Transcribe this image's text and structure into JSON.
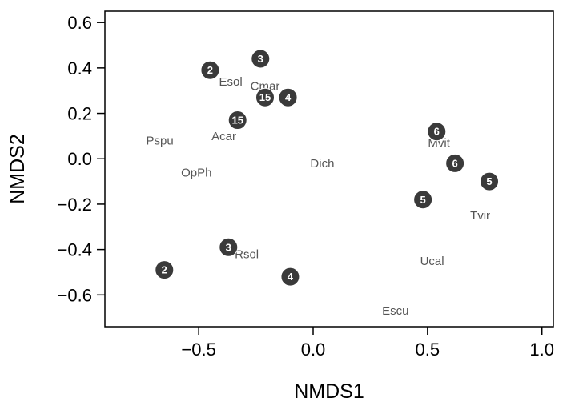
{
  "chart_data": {
    "type": "scatter",
    "xlabel": "NMDS1",
    "ylabel": "NMDS2",
    "xlim": [
      -0.91,
      1.05
    ],
    "ylim": [
      -0.74,
      0.65
    ],
    "x_ticks": [
      {
        "value": -0.5,
        "label": "−0.5"
      },
      {
        "value": 0.0,
        "label": "0.0"
      },
      {
        "value": 0.5,
        "label": "0.5"
      },
      {
        "value": 1.0,
        "label": "1.0"
      }
    ],
    "y_ticks": [
      {
        "value": -0.6,
        "label": "−0.6"
      },
      {
        "value": -0.4,
        "label": "−0.4"
      },
      {
        "value": -0.2,
        "label": "−0.2"
      },
      {
        "value": 0.0,
        "label": "0.0"
      },
      {
        "value": 0.2,
        "label": "0.2"
      },
      {
        "value": 0.4,
        "label": "0.4"
      },
      {
        "value": 0.6,
        "label": "0.6"
      }
    ],
    "sites": [
      {
        "label": "2",
        "x": -0.45,
        "y": 0.39
      },
      {
        "label": "3",
        "x": -0.23,
        "y": 0.44
      },
      {
        "label": "15",
        "x": -0.21,
        "y": 0.27
      },
      {
        "label": "4",
        "x": -0.11,
        "y": 0.27
      },
      {
        "label": "15",
        "x": -0.33,
        "y": 0.17
      },
      {
        "label": "6",
        "x": 0.54,
        "y": 0.12
      },
      {
        "label": "6",
        "x": 0.62,
        "y": -0.02
      },
      {
        "label": "5",
        "x": 0.77,
        "y": -0.1
      },
      {
        "label": "5",
        "x": 0.48,
        "y": -0.18
      },
      {
        "label": "3",
        "x": -0.37,
        "y": -0.39
      },
      {
        "label": "2",
        "x": -0.65,
        "y": -0.49
      },
      {
        "label": "4",
        "x": -0.1,
        "y": -0.52
      }
    ],
    "species": [
      {
        "label": "Esol",
        "x": -0.36,
        "y": 0.34
      },
      {
        "label": "Cmar",
        "x": -0.21,
        "y": 0.32
      },
      {
        "label": "Pspu",
        "x": -0.67,
        "y": 0.08
      },
      {
        "label": "Acar",
        "x": -0.39,
        "y": 0.1
      },
      {
        "label": "OpPh",
        "x": -0.51,
        "y": -0.06
      },
      {
        "label": "Dich",
        "x": 0.04,
        "y": -0.02
      },
      {
        "label": "Mvit",
        "x": 0.55,
        "y": 0.07
      },
      {
        "label": "Tvir",
        "x": 0.73,
        "y": -0.25
      },
      {
        "label": "Rsol",
        "x": -0.29,
        "y": -0.42
      },
      {
        "label": "Ucal",
        "x": 0.52,
        "y": -0.45
      },
      {
        "label": "Escu",
        "x": 0.36,
        "y": -0.67
      }
    ]
  }
}
